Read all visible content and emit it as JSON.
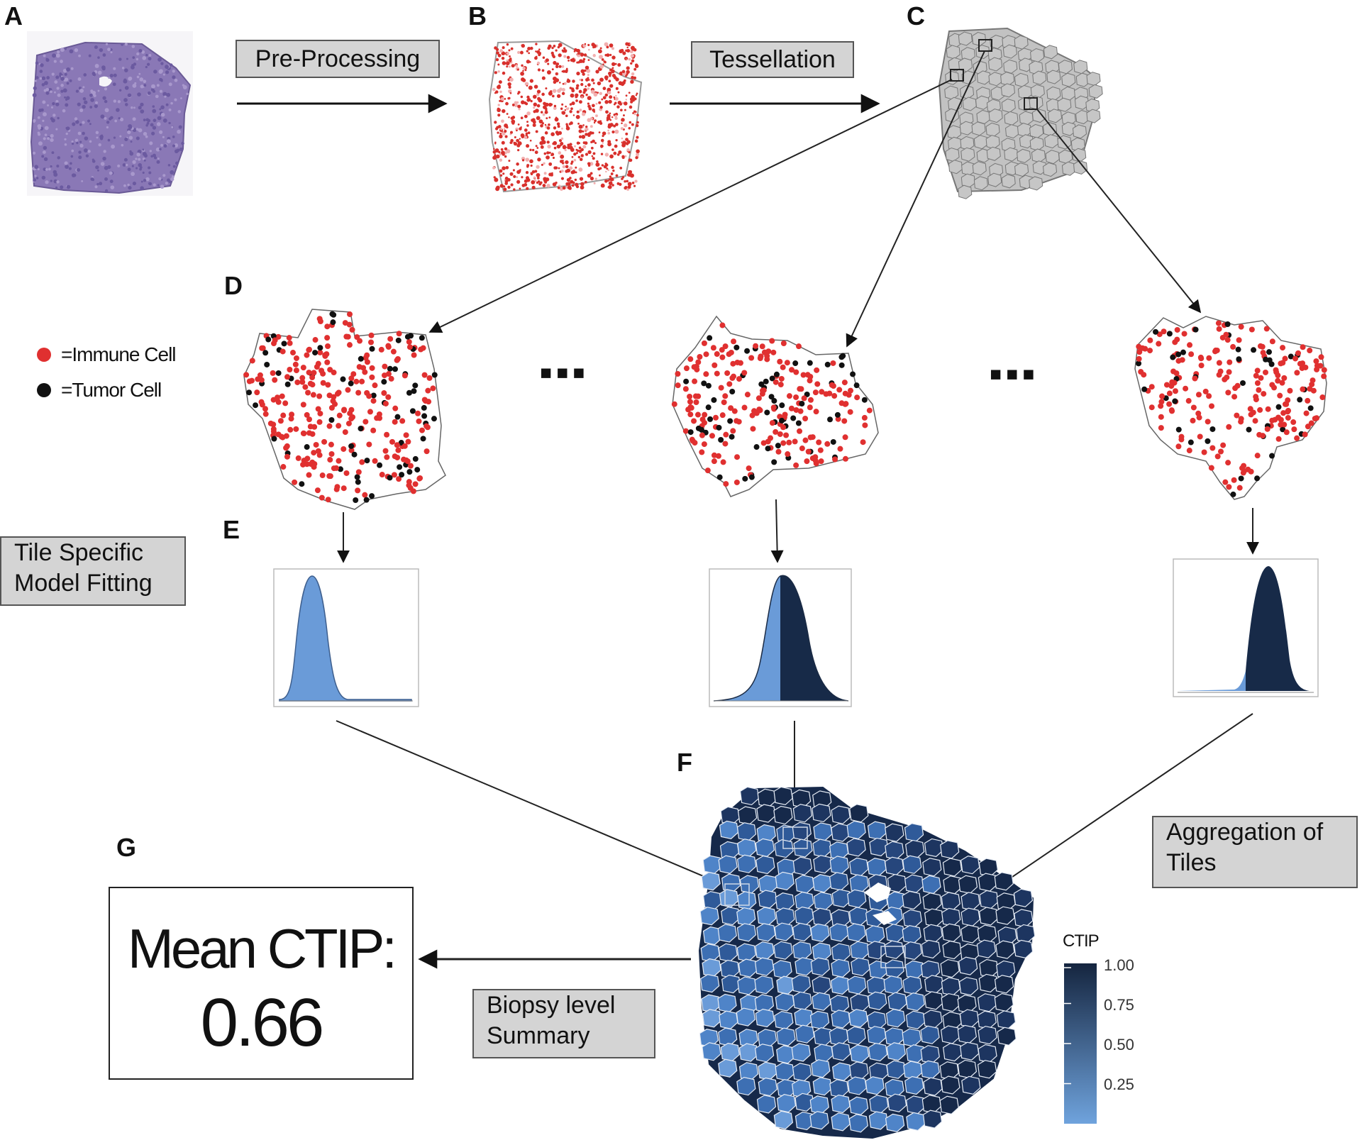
{
  "panels": {
    "a": "A",
    "b": "B",
    "c": "C",
    "d": "D",
    "e": "E",
    "f": "F",
    "g": "G"
  },
  "steps": {
    "preprocessing": "Pre-Processing",
    "tessellation": "Tessellation",
    "model_fitting_line1": "Tile Specific",
    "model_fitting_line2": "Model Fitting",
    "aggregation_line1": "Aggregation of",
    "aggregation_line2": "Tiles",
    "summary_line1": "Biopsy level",
    "summary_line2": "Summary"
  },
  "legend": {
    "immune_label": "=Immune Cell",
    "tumor_label": "=Tumor Cell",
    "immune_color": "#e03030",
    "tumor_color": "#111111"
  },
  "ellipsis": "▪▪▪",
  "result": {
    "title": "Mean CTIP:",
    "value": "0.66"
  },
  "colorbar": {
    "title": "CTIP",
    "ticks": [
      "1.00",
      "0.75",
      "0.50",
      "0.25"
    ],
    "tick_values": [
      1.0,
      0.75,
      0.5,
      0.25
    ],
    "color_low": "#6fa3dd",
    "color_high": "#15253f"
  },
  "colors": {
    "tissue_purple": "#8a78b6",
    "heatmap_dark": "#16294a",
    "tile_gray": "#c2c2c2",
    "density_light": "#6a9bd8",
    "density_dark": "#172a48"
  }
}
